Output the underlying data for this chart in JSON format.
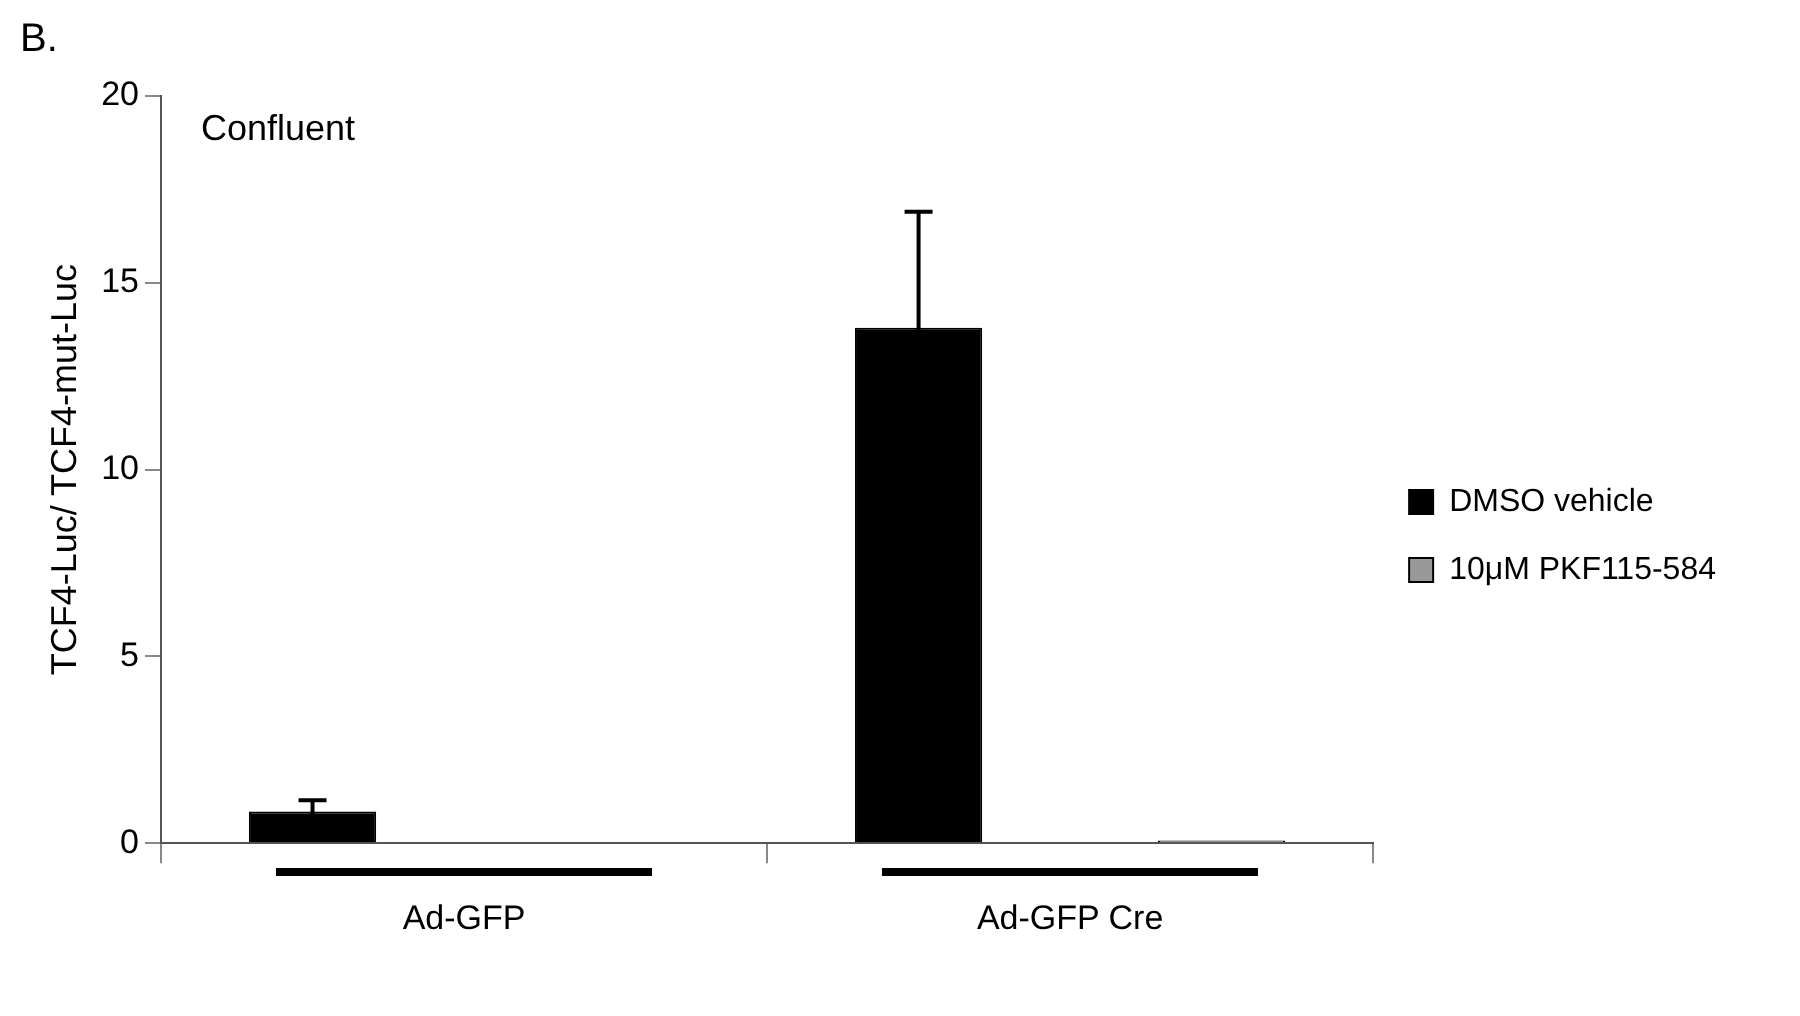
{
  "chart_data": {
    "type": "bar",
    "ylabel": "TCF4-Luc/ TCF4-mut-Luc",
    "categories": [
      "Ad-GFP",
      "Ad-GFP Cre"
    ],
    "series": [
      {
        "name": "DMSO vehicle",
        "color": "#000000",
        "values": [
          0.85,
          13.8
        ],
        "errors": [
          0.3,
          3.1
        ]
      },
      {
        "name": "10μM PKF115-584",
        "color": "#999999",
        "values": [
          0,
          0.07
        ],
        "errors": [
          null,
          null
        ]
      }
    ],
    "ylim": [
      0,
      20
    ],
    "yticks": [
      0,
      5,
      10,
      15,
      20
    ],
    "grid": false,
    "legend": "right",
    "annotations": [
      "B.",
      "Confluent"
    ]
  }
}
